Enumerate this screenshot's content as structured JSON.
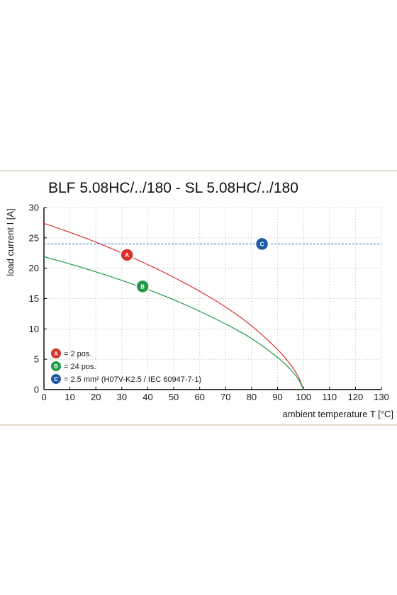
{
  "colors": {
    "background": "#ffffff",
    "frame_line": "#c8b59a",
    "grid": "#bfbfbf",
    "axis": "#000000",
    "series_a": "#d7322b",
    "series_b": "#1f9a48",
    "series_c": "#1f5aa5",
    "reference_line": "#5b8fd4"
  },
  "chart_data": {
    "type": "line",
    "title": "BLF 5.08HC/../180 - SL 5.08HC/../180",
    "xlabel": "ambient temperature T [°C]",
    "ylabel": "load current I [A]",
    "xlim": [
      0,
      130
    ],
    "ylim": [
      0,
      30
    ],
    "xticks": [
      0,
      10,
      20,
      30,
      40,
      50,
      60,
      70,
      80,
      90,
      100,
      110,
      120,
      130
    ],
    "yticks": [
      0,
      5,
      10,
      15,
      20,
      25,
      30
    ],
    "grid": true,
    "legend_position": "bottom-left",
    "series": [
      {
        "marker": "A",
        "legend": "= 2 pos.",
        "color_key": "series_a",
        "x": [
          0,
          10,
          20,
          30,
          40,
          50,
          60,
          70,
          80,
          90,
          95,
          98,
          100
        ],
        "y": [
          27.4,
          25.9,
          24.3,
          22.5,
          20.6,
          18.5,
          16.2,
          13.6,
          10.5,
          6.6,
          4.1,
          2.1,
          0
        ]
      },
      {
        "marker": "B",
        "legend": "= 24 pos.",
        "color_key": "series_b",
        "x": [
          0,
          10,
          20,
          30,
          40,
          50,
          60,
          70,
          80,
          90,
          95,
          98,
          100
        ],
        "y": [
          21.9,
          20.7,
          19.4,
          18.0,
          16.5,
          14.8,
          12.9,
          10.8,
          8.4,
          5.3,
          3.3,
          1.7,
          0
        ]
      },
      {
        "marker": "C",
        "legend": "= 2.5 mm² (H07V-K2.5 / IEC 60947-7-1)",
        "color_key": "series_c",
        "dashed": true,
        "x": [
          0,
          130
        ],
        "y": [
          24,
          24
        ]
      }
    ],
    "markers": [
      {
        "label": "A",
        "x": 32,
        "y": 22.2,
        "color_key": "series_a"
      },
      {
        "label": "B",
        "x": 38,
        "y": 17.0,
        "color_key": "series_b"
      },
      {
        "label": "C",
        "x": 84,
        "y": 24.0,
        "color_key": "series_c"
      }
    ]
  }
}
